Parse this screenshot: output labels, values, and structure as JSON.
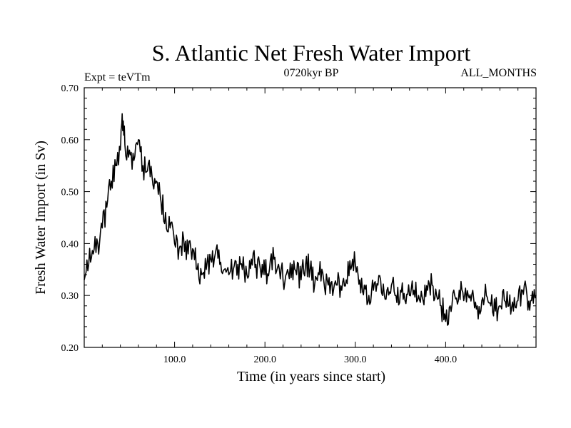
{
  "chart_data": {
    "type": "line",
    "title": "S. Atlantic Net Fresh Water Import",
    "subtitle_left": "Expt = teVTm",
    "subtitle_center": "0720kyr BP",
    "subtitle_right": "ALL_MONTHS",
    "xlabel": "Time (in years since start)",
    "ylabel": "Fresh Water Import (in Sv)",
    "xlim": [
      0,
      500
    ],
    "ylim": [
      0.2,
      0.7
    ],
    "x_ticks": [
      100,
      200,
      300,
      400
    ],
    "x_tick_labels": [
      "100.0",
      "200.0",
      "300.0",
      "400.0"
    ],
    "y_ticks": [
      0.2,
      0.3,
      0.4,
      0.5,
      0.6,
      0.7
    ],
    "y_tick_labels": [
      "0.20",
      "0.30",
      "0.40",
      "0.50",
      "0.60",
      "0.70"
    ],
    "grid": false,
    "line_color": "#000000",
    "series": [
      {
        "x": [
          0,
          5,
          10,
          15,
          20,
          25,
          30,
          35,
          40,
          42,
          45,
          50,
          55,
          60,
          65,
          70,
          75,
          80,
          85,
          90,
          95,
          100,
          105,
          110,
          115,
          120,
          125,
          130,
          135,
          140,
          145,
          150,
          155,
          160,
          165,
          170,
          175,
          180,
          185,
          190,
          195,
          200,
          205,
          210,
          215,
          220,
          225,
          230,
          235,
          240,
          245,
          250,
          255,
          260,
          265,
          270,
          275,
          280,
          285,
          290,
          295,
          300,
          305,
          310,
          315,
          320,
          325,
          330,
          335,
          340,
          345,
          350,
          355,
          360,
          365,
          370,
          375,
          380,
          385,
          390,
          395,
          400,
          405,
          410,
          415,
          420,
          425,
          430,
          435,
          440,
          445,
          450,
          455,
          460,
          465,
          470,
          475,
          480,
          485,
          490,
          495,
          500
        ],
        "y": [
          0.33,
          0.36,
          0.38,
          0.4,
          0.43,
          0.47,
          0.52,
          0.55,
          0.58,
          0.65,
          0.59,
          0.58,
          0.56,
          0.6,
          0.55,
          0.54,
          0.53,
          0.52,
          0.48,
          0.46,
          0.43,
          0.4,
          0.39,
          0.41,
          0.38,
          0.39,
          0.35,
          0.34,
          0.35,
          0.37,
          0.38,
          0.36,
          0.35,
          0.34,
          0.35,
          0.36,
          0.35,
          0.34,
          0.37,
          0.36,
          0.35,
          0.34,
          0.35,
          0.37,
          0.36,
          0.33,
          0.35,
          0.36,
          0.34,
          0.33,
          0.36,
          0.35,
          0.32,
          0.34,
          0.33,
          0.32,
          0.3,
          0.32,
          0.31,
          0.33,
          0.35,
          0.36,
          0.33,
          0.32,
          0.3,
          0.31,
          0.32,
          0.3,
          0.31,
          0.32,
          0.3,
          0.31,
          0.29,
          0.3,
          0.31,
          0.3,
          0.29,
          0.31,
          0.32,
          0.3,
          0.28,
          0.25,
          0.28,
          0.3,
          0.31,
          0.29,
          0.3,
          0.31,
          0.28,
          0.29,
          0.3,
          0.28,
          0.27,
          0.28,
          0.29,
          0.28,
          0.27,
          0.29,
          0.31,
          0.3,
          0.29,
          0.3
        ]
      }
    ]
  }
}
